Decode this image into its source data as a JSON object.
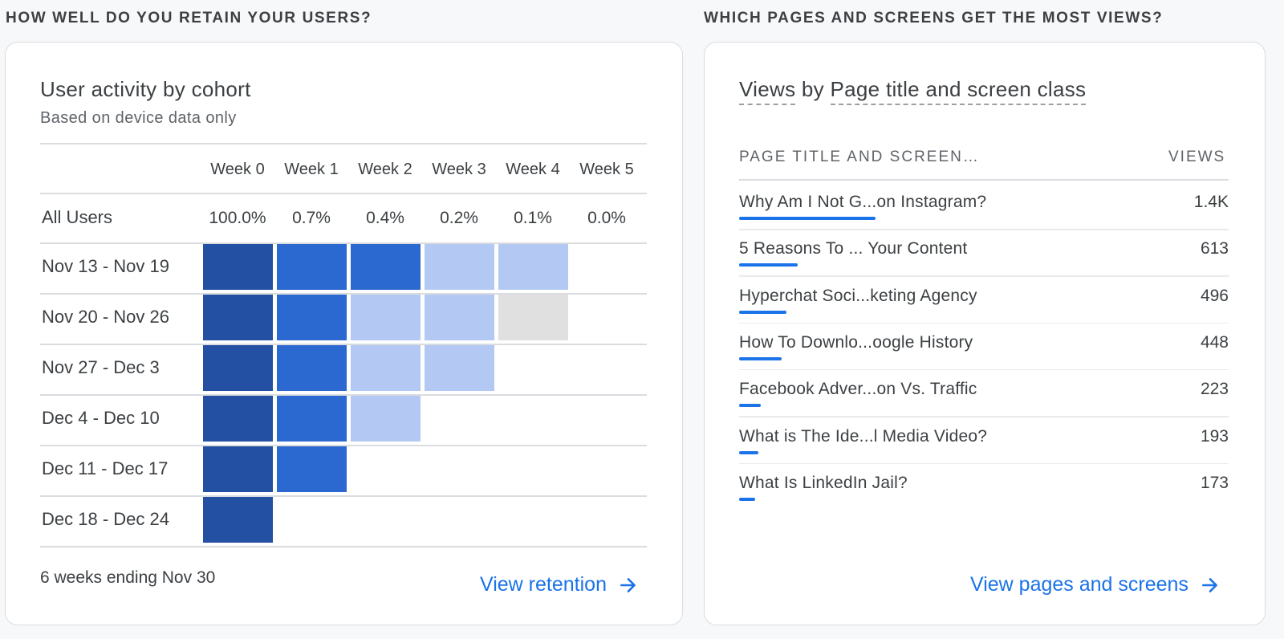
{
  "colors": {
    "accent": "#1a73e8",
    "cohort_dark": "#2350a3",
    "cohort_mid": "#2b68cf",
    "cohort_light": "#b3c9f4",
    "cohort_gray": "#e0e0e0"
  },
  "retention": {
    "section_heading": "HOW WELL DO YOU RETAIN YOUR USERS?",
    "title": "User activity by cohort",
    "subtitle": "Based on device data only",
    "weeks": [
      "Week 0",
      "Week 1",
      "Week 2",
      "Week 3",
      "Week 4",
      "Week 5"
    ],
    "all_users_label": "All Users",
    "all_users_values": [
      "100.0%",
      "0.7%",
      "0.4%",
      "0.2%",
      "0.1%",
      "0.0%"
    ],
    "cohorts": [
      {
        "label": "Nov 13 - Nov 19",
        "levels": [
          "dark",
          "mid",
          "mid",
          "light",
          "light"
        ]
      },
      {
        "label": "Nov 20 - Nov 26",
        "levels": [
          "dark",
          "mid",
          "light",
          "light",
          "gray"
        ]
      },
      {
        "label": "Nov 27 - Dec 3",
        "levels": [
          "dark",
          "mid",
          "light",
          "light"
        ]
      },
      {
        "label": "Dec 4 - Dec 10",
        "levels": [
          "dark",
          "mid",
          "light"
        ]
      },
      {
        "label": "Dec 11 - Dec 17",
        "levels": [
          "dark",
          "mid"
        ]
      },
      {
        "label": "Dec 18 - Dec 24",
        "levels": [
          "dark"
        ]
      }
    ],
    "footer_note": "6 weeks ending Nov 30",
    "link_label": "View retention",
    "link_icon": "arrow-right-icon"
  },
  "pages": {
    "section_heading": "WHICH PAGES AND SCREENS GET THE MOST VIEWS?",
    "title_metric": "Views",
    "title_by": "by",
    "title_dimension": "Page title and screen class",
    "col_name": "PAGE TITLE AND SCREEN…",
    "col_value": "VIEWS",
    "rows": [
      {
        "name": "Why Am I Not G...on Instagram?",
        "value": "1.4K",
        "share": 1.0
      },
      {
        "name": "5 Reasons To ... Your Content",
        "value": "613",
        "share": 0.43
      },
      {
        "name": "Hyperchat Soci...keting Agency",
        "value": "496",
        "share": 0.35
      },
      {
        "name": "How To Downlo...oogle History",
        "value": "448",
        "share": 0.31
      },
      {
        "name": "Facebook Adver...on Vs. Traffic",
        "value": "223",
        "share": 0.16
      },
      {
        "name": "What is The Ide...l Media Video?",
        "value": "193",
        "share": 0.14
      },
      {
        "name": "What Is LinkedIn Jail?",
        "value": "173",
        "share": 0.12
      }
    ],
    "link_label": "View pages and screens",
    "link_icon": "arrow-right-icon"
  }
}
